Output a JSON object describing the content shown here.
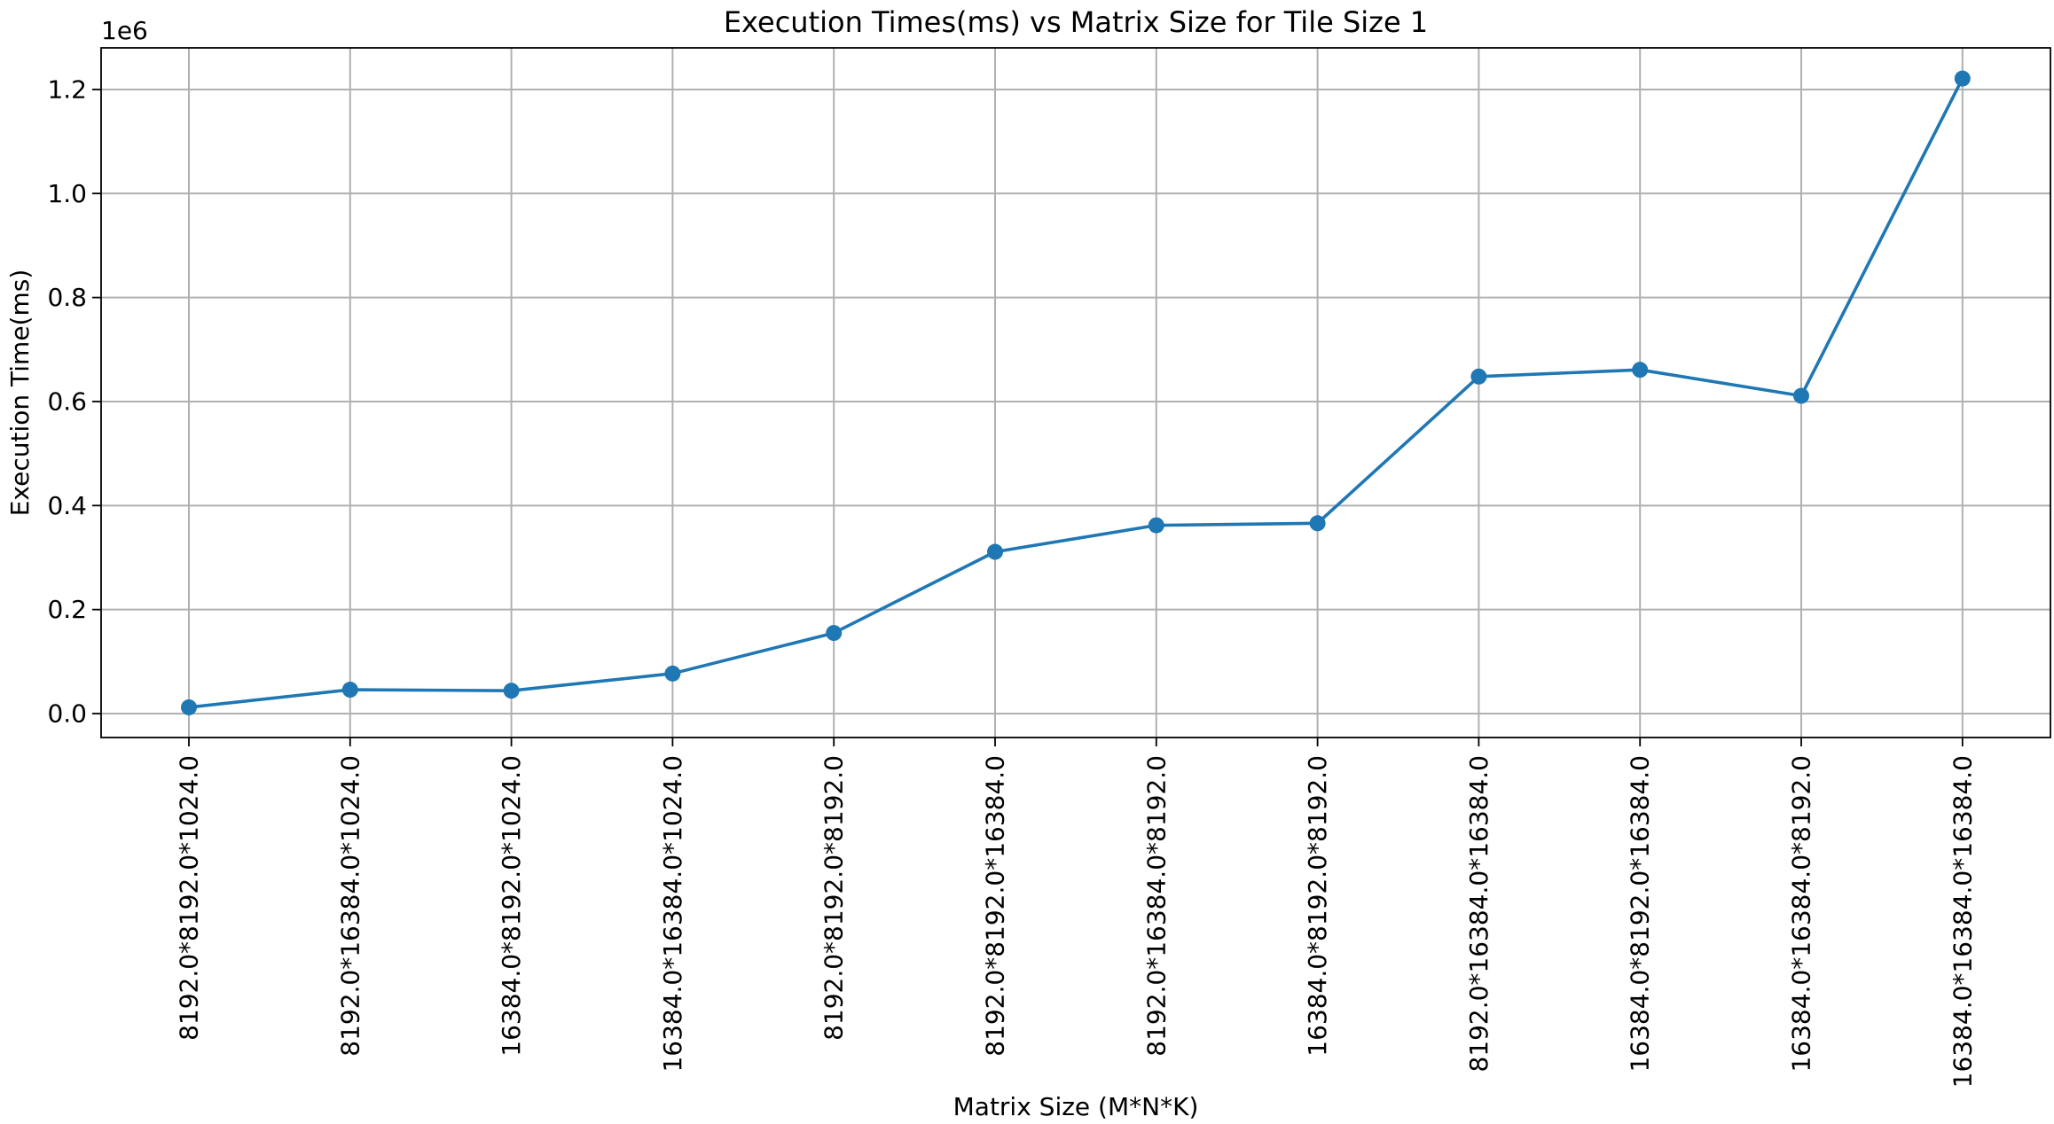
{
  "chart_data": {
    "type": "line",
    "title": "Execution Times(ms) vs Matrix Size for Tile Size 1",
    "xlabel": "Matrix Size (M*N*K)",
    "ylabel": "Execution Time(ms)",
    "y_offset_label": "1e6",
    "y_scale": 1000000,
    "ylim": [
      -0.046,
      1.28
    ],
    "yticks": [
      0.0,
      0.2,
      0.4,
      0.6,
      0.8,
      1.0,
      1.2
    ],
    "ytick_labels": [
      "0.0",
      "0.2",
      "0.4",
      "0.6",
      "0.8",
      "1.0",
      "1.2"
    ],
    "grid": true,
    "categories": [
      "8192.0*8192.0*1024.0",
      "8192.0*16384.0*1024.0",
      "16384.0*8192.0*1024.0",
      "16384.0*16384.0*1024.0",
      "8192.0*8192.0*8192.0",
      "8192.0*8192.0*16384.0",
      "8192.0*16384.0*8192.0",
      "16384.0*8192.0*8192.0",
      "8192.0*16384.0*16384.0",
      "16384.0*8192.0*16384.0",
      "16384.0*16384.0*8192.0",
      "16384.0*16384.0*16384.0"
    ],
    "series": [
      {
        "color": "#1f77b4",
        "values": [
          12000,
          46000,
          44000,
          77000,
          155000,
          311000,
          362000,
          366000,
          648000,
          661000,
          611000,
          1221000
        ]
      }
    ]
  }
}
